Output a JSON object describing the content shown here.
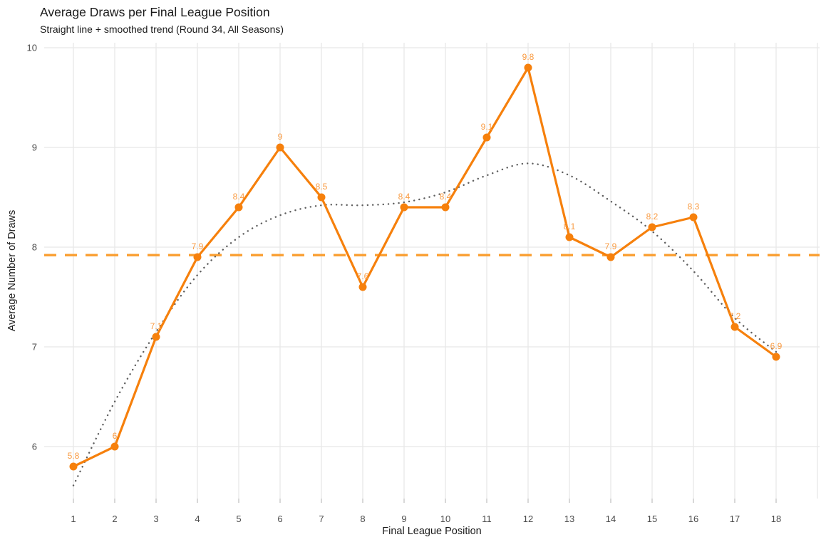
{
  "chart_data": {
    "type": "line",
    "title": "Average Draws per Final League Position",
    "subtitle": "Straight line + smoothed trend (Round 34, All Seasons)",
    "xlabel": "Final League Position",
    "ylabel": "Average Number of Draws",
    "x": [
      1,
      2,
      3,
      4,
      5,
      6,
      7,
      8,
      9,
      10,
      11,
      12,
      13,
      14,
      15,
      16,
      17,
      18
    ],
    "xticks": [
      "1",
      "2",
      "3",
      "4",
      "5",
      "6",
      "7",
      "8",
      "9",
      "10",
      "11",
      "12",
      "13",
      "14",
      "15",
      "16",
      "17",
      "18"
    ],
    "yticks": [
      "6",
      "7",
      "8",
      "9",
      "10"
    ],
    "ylim": [
      5.48,
      10.05
    ],
    "grid": true,
    "legend_position": "none",
    "series": [
      {
        "name": "average-draws",
        "style": "solid-line-with-markers",
        "values": [
          5.8,
          6,
          7.1,
          7.9,
          8.4,
          9,
          8.5,
          7.6,
          8.4,
          8.4,
          9.1,
          9.8,
          8.1,
          7.9,
          8.2,
          8.3,
          7.2,
          6.9
        ],
        "point_labels": [
          "5.8",
          "6",
          "7.1",
          "7.9",
          "8.4",
          "9",
          "8.5",
          "7.6",
          "8.4",
          "8.4",
          "9.1",
          "9.8",
          "8.1",
          "7.9",
          "8.2",
          "8.3",
          "7.2",
          "6.9"
        ],
        "color": "#F6800C",
        "label_color": "#F99B42"
      },
      {
        "name": "smoothed-trend",
        "style": "dotted-curve",
        "values": [
          5.61,
          6.45,
          7.15,
          7.72,
          8.1,
          8.32,
          8.42,
          8.42,
          8.45,
          8.55,
          8.72,
          8.84,
          8.72,
          8.46,
          8.16,
          7.76,
          7.29,
          6.95
        ],
        "color": "#5E5E5E"
      },
      {
        "name": "overall-mean-line",
        "style": "dashed-hline",
        "value": 7.92,
        "color": "#FA9E30"
      }
    ],
    "colors": {
      "grid": "#E8E8E8",
      "tick_mark": "#C4C4C4",
      "tick_label": "#4D4D4D",
      "title_text": "#1a1a1a"
    }
  }
}
